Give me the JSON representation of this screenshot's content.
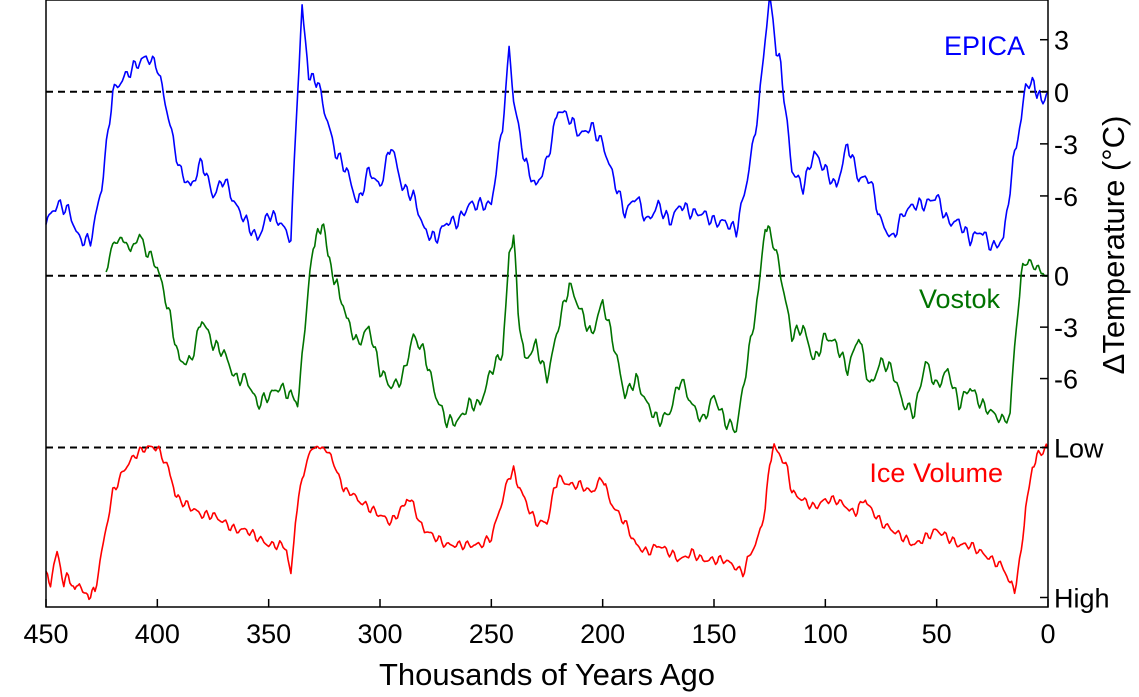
{
  "chart_data": {
    "type": "line",
    "title": "",
    "xlabel": "Thousands of Years Ago",
    "ylabel": "ΔTemperature (°C)",
    "xlim": [
      450,
      0
    ],
    "x_ticks": [
      "450",
      "400",
      "350",
      "300",
      "250",
      "200",
      "150",
      "100",
      "50",
      "0"
    ],
    "grid": false,
    "panels": [
      {
        "name": "EPICA",
        "color": "#0000ff",
        "unit": "°C",
        "ylim": [
          -9,
          5
        ],
        "y_ticks": [
          "3",
          "0",
          "-3",
          "-6"
        ],
        "reference_line": 0,
        "x": [
          450,
          445,
          440,
          435,
          430,
          425,
          420,
          415,
          410,
          405,
          400,
          395,
          390,
          385,
          380,
          375,
          370,
          365,
          360,
          355,
          350,
          345,
          340,
          337,
          335,
          332,
          328,
          325,
          320,
          315,
          310,
          305,
          300,
          295,
          290,
          285,
          280,
          275,
          270,
          265,
          260,
          255,
          250,
          245,
          242,
          240,
          235,
          230,
          225,
          220,
          215,
          210,
          205,
          200,
          195,
          190,
          185,
          180,
          175,
          170,
          165,
          160,
          155,
          150,
          145,
          140,
          135,
          130,
          127,
          125,
          122,
          120,
          115,
          110,
          105,
          100,
          95,
          90,
          85,
          80,
          75,
          70,
          65,
          60,
          55,
          50,
          45,
          40,
          35,
          30,
          25,
          20,
          17,
          15,
          12,
          10,
          7,
          5,
          3,
          0
        ],
        "y": [
          -7.5,
          -6.5,
          -6.8,
          -8.5,
          -8.6,
          -5.5,
          0,
          0.8,
          1.5,
          2,
          1.5,
          -1.5,
          -4.5,
          -5.5,
          -4,
          -6,
          -5,
          -6.5,
          -7.5,
          -8.5,
          -7,
          -7.5,
          -8.5,
          0,
          4.8,
          1,
          0.5,
          -1,
          -3.5,
          -4.5,
          -6.5,
          -4.5,
          -5.5,
          -3,
          -5.5,
          -6,
          -8,
          -8.5,
          -7.5,
          -7.5,
          -6.5,
          -6.5,
          -6.5,
          -2,
          2.5,
          -0.5,
          -4,
          -5.5,
          -4,
          -1,
          -1.5,
          -2.5,
          -2,
          -3,
          -5,
          -7,
          -6,
          -7.5,
          -6.5,
          -7.5,
          -6.5,
          -7,
          -7,
          -7.5,
          -7.5,
          -8,
          -5,
          -1,
          3,
          5.5,
          2.5,
          1.5,
          -4.5,
          -5.5,
          -3.5,
          -4.5,
          -5.5,
          -3,
          -5,
          -5,
          -7.5,
          -8.5,
          -7,
          -6.5,
          -6.5,
          -6,
          -7.5,
          -7.5,
          -8.5,
          -8,
          -9,
          -8.5,
          -5.5,
          -3.5,
          -1.5,
          0.5,
          0.5,
          0,
          -0.5,
          0
        ]
      },
      {
        "name": "Vostok",
        "color": "#007300",
        "unit": "°C",
        "ylim": [
          -9,
          5
        ],
        "y_ticks": [
          "0",
          "-3",
          "-6"
        ],
        "reference_line": 0,
        "x": [
          423,
          420,
          416,
          412,
          408,
          405,
          400,
          395,
          390,
          385,
          380,
          375,
          370,
          365,
          360,
          355,
          350,
          345,
          340,
          337,
          333,
          330,
          326,
          324,
          322,
          318,
          315,
          310,
          305,
          300,
          295,
          290,
          285,
          280,
          275,
          270,
          265,
          260,
          255,
          250,
          245,
          242,
          240,
          238,
          235,
          230,
          225,
          220,
          215,
          210,
          205,
          200,
          195,
          190,
          185,
          180,
          175,
          170,
          165,
          160,
          155,
          150,
          145,
          140,
          135,
          130,
          127,
          125,
          122,
          120,
          115,
          110,
          105,
          100,
          95,
          90,
          85,
          80,
          75,
          70,
          65,
          60,
          55,
          50,
          45,
          40,
          35,
          30,
          25,
          20,
          17,
          15,
          12,
          10,
          7,
          5,
          3,
          0
        ],
        "y": [
          0.5,
          1.8,
          2.2,
          1.5,
          2.3,
          1.5,
          0.5,
          -2,
          -5,
          -5,
          -2.5,
          -4,
          -4.5,
          -6,
          -6,
          -7.5,
          -7,
          -6.5,
          -7,
          -7.5,
          -2,
          1.8,
          3,
          2,
          0.3,
          -1,
          -2.5,
          -4,
          -3,
          -5.5,
          -6.5,
          -6,
          -3.5,
          -4.5,
          -7,
          -8.5,
          -8.5,
          -7.5,
          -7.5,
          -5.5,
          -4.5,
          1,
          2.5,
          -2,
          -5,
          -4,
          -6,
          -3,
          -0.5,
          -2,
          -3.5,
          -1.5,
          -4,
          -7,
          -6,
          -7.5,
          -8.5,
          -8,
          -6,
          -7.5,
          -8.5,
          -7,
          -8.5,
          -9,
          -5,
          -1,
          3,
          2.5,
          1.5,
          0,
          -3.5,
          -3,
          -5,
          -3.5,
          -4,
          -5.5,
          -3.5,
          -6.5,
          -5,
          -5.5,
          -7.5,
          -8,
          -5,
          -6.5,
          -5.5,
          -7.5,
          -6.5,
          -7.5,
          -8,
          -8.5,
          -8,
          -4,
          0,
          1,
          0.5,
          0.5,
          0.3,
          0
        ]
      },
      {
        "name": "Ice Volume",
        "color": "#ff0000",
        "unit": "relative",
        "ylim": [
          -0.05,
          1.05
        ],
        "y_ticks": [
          "Low",
          "High"
        ],
        "reference_line": 1,
        "x": [
          450,
          448,
          445,
          442,
          440,
          437,
          435,
          432,
          430,
          428,
          425,
          420,
          415,
          410,
          405,
          400,
          398,
          395,
          392,
          390,
          385,
          380,
          375,
          370,
          365,
          360,
          355,
          350,
          345,
          342,
          340,
          338,
          335,
          332,
          330,
          326,
          322,
          320,
          317,
          315,
          312,
          310,
          305,
          300,
          295,
          290,
          288,
          285,
          282,
          280,
          275,
          270,
          265,
          260,
          255,
          250,
          245,
          242,
          240,
          238,
          235,
          230,
          225,
          222,
          220,
          215,
          210,
          205,
          200,
          198,
          195,
          190,
          185,
          180,
          175,
          170,
          165,
          160,
          155,
          150,
          145,
          140,
          137,
          135,
          130,
          127,
          125,
          123,
          120,
          117,
          115,
          110,
          105,
          100,
          95,
          90,
          87,
          85,
          82,
          80,
          75,
          70,
          65,
          60,
          55,
          50,
          45,
          40,
          35,
          30,
          25,
          20,
          17,
          15,
          12,
          10,
          7,
          5,
          3,
          0
        ],
        "y": [
          0.15,
          0.1,
          0.3,
          0.1,
          0.15,
          0.05,
          0.1,
          0.0,
          0.02,
          0.05,
          0.3,
          0.7,
          0.85,
          0.95,
          1.0,
          1.0,
          0.95,
          0.85,
          0.7,
          0.65,
          0.6,
          0.55,
          0.55,
          0.5,
          0.45,
          0.45,
          0.4,
          0.35,
          0.35,
          0.32,
          0.15,
          0.5,
          0.8,
          0.95,
          1.0,
          1.0,
          0.95,
          0.85,
          0.75,
          0.7,
          0.7,
          0.65,
          0.6,
          0.55,
          0.5,
          0.6,
          0.65,
          0.62,
          0.5,
          0.45,
          0.4,
          0.35,
          0.35,
          0.35,
          0.35,
          0.4,
          0.65,
          0.8,
          0.85,
          0.75,
          0.65,
          0.5,
          0.5,
          0.7,
          0.8,
          0.75,
          0.75,
          0.7,
          0.8,
          0.7,
          0.6,
          0.5,
          0.35,
          0.3,
          0.35,
          0.3,
          0.25,
          0.3,
          0.25,
          0.25,
          0.25,
          0.2,
          0.15,
          0.25,
          0.4,
          0.6,
          0.9,
          1.0,
          0.95,
          0.85,
          0.7,
          0.65,
          0.6,
          0.65,
          0.65,
          0.6,
          0.55,
          0.6,
          0.65,
          0.6,
          0.5,
          0.45,
          0.4,
          0.35,
          0.4,
          0.45,
          0.4,
          0.35,
          0.35,
          0.3,
          0.25,
          0.2,
          0.1,
          0.05,
          0.3,
          0.6,
          0.85,
          0.95,
          0.97,
          1.0
        ]
      }
    ]
  }
}
